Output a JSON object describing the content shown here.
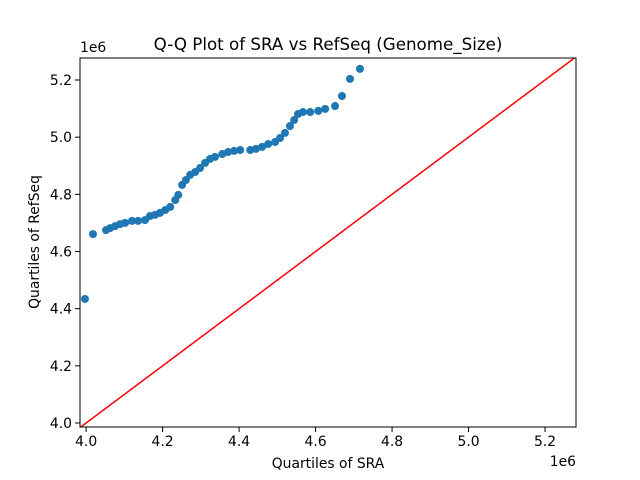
{
  "chart_data": {
    "type": "scatter",
    "title": "Q-Q Plot of SRA vs RefSeq (Genome_Size)",
    "x_label": "Quartiles of SRA",
    "y_label": "Quartiles of RefSeq",
    "x_offset_label": "1e6",
    "y_offset_label": "1e6",
    "color": "#1f77b4",
    "reference_line_color": "#ff0000",
    "xlim": [
      3.984,
      5.281
    ],
    "ylim": [
      3.986,
      5.277
    ],
    "xticks": [
      {
        "value": 4.0,
        "label": "4.0"
      },
      {
        "value": 4.2,
        "label": "4.2"
      },
      {
        "value": 4.4,
        "label": "4.4"
      },
      {
        "value": 4.6,
        "label": "4.6"
      },
      {
        "value": 4.8,
        "label": "4.8"
      },
      {
        "value": 5.0,
        "label": "5.0"
      },
      {
        "value": 5.2,
        "label": "5.2"
      }
    ],
    "yticks": [
      {
        "value": 4.0,
        "label": "4.0"
      },
      {
        "value": 4.2,
        "label": "4.2"
      },
      {
        "value": 4.4,
        "label": "4.4"
      },
      {
        "value": 4.6,
        "label": "4.6"
      },
      {
        "value": 4.8,
        "label": "4.8"
      },
      {
        "value": 5.0,
        "label": "5.0"
      },
      {
        "value": 5.2,
        "label": "5.2"
      }
    ],
    "x": [
      3.997,
      4.018,
      4.052,
      4.063,
      4.076,
      4.089,
      4.102,
      4.12,
      4.136,
      4.154,
      4.167,
      4.18,
      4.193,
      4.207,
      4.22,
      4.233,
      4.241,
      4.251,
      4.261,
      4.272,
      4.285,
      4.298,
      4.311,
      4.324,
      4.337,
      4.356,
      4.371,
      4.387,
      4.403,
      4.429,
      4.444,
      4.46,
      4.476,
      4.494,
      4.507,
      4.52,
      4.533,
      4.544,
      4.554,
      4.567,
      4.586,
      4.607,
      4.625,
      4.651,
      4.669,
      4.69,
      4.716
    ],
    "values": [
      4.434,
      4.661,
      4.675,
      4.682,
      4.689,
      4.696,
      4.7,
      4.707,
      4.707,
      4.71,
      4.724,
      4.728,
      4.735,
      4.745,
      4.756,
      4.78,
      4.798,
      4.833,
      4.85,
      4.868,
      4.878,
      4.892,
      4.91,
      4.924,
      4.931,
      4.941,
      4.948,
      4.952,
      4.955,
      4.955,
      4.959,
      4.966,
      4.976,
      4.983,
      4.997,
      5.015,
      5.039,
      5.06,
      5.081,
      5.088,
      5.088,
      5.092,
      5.099,
      5.109,
      5.144,
      5.204,
      5.239
    ]
  }
}
